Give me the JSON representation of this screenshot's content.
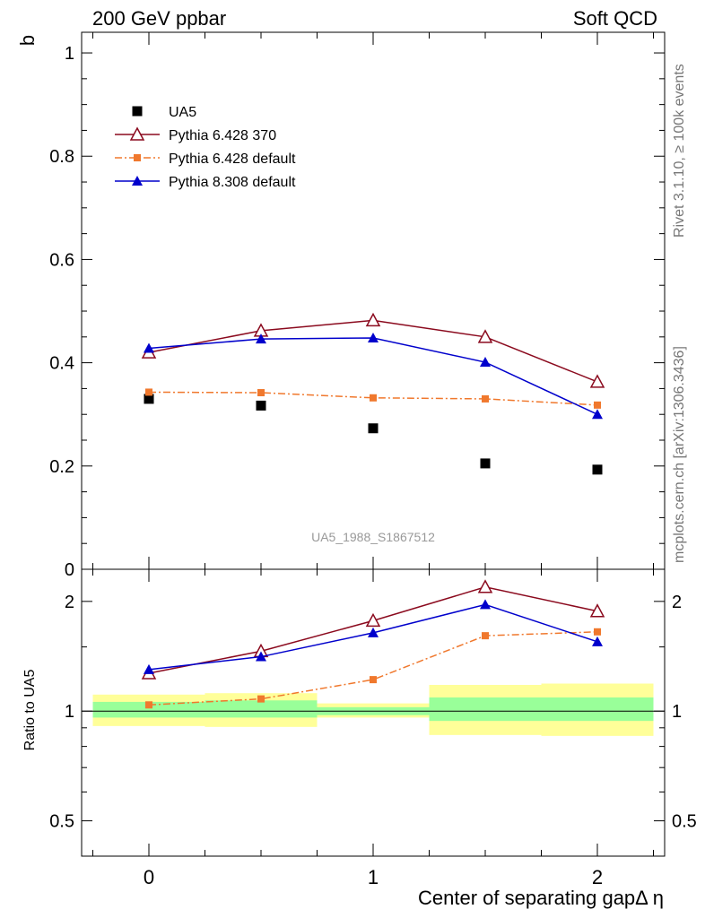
{
  "header": {
    "left": "200 GeV ppbar",
    "right": "Soft QCD"
  },
  "side": {
    "rivet": "Rivet 3.1.10, ≥ 100k events",
    "mcplots": "mcplots.cern.ch [arXiv:1306.3436]"
  },
  "colors": {
    "ua5": "#000000",
    "py6_370": "#8b0a1e",
    "py6_default": "#f0782d",
    "py8_default": "#0000cc",
    "band_inner": "#99ff99",
    "band_outer": "#ffff99"
  },
  "chart_data": [
    {
      "type": "scatter",
      "panel": "main",
      "ylabel": "b",
      "xlim": [
        -0.3,
        2.3
      ],
      "ylim": [
        0,
        1.04
      ],
      "y_ticks": [
        "0",
        "0.2",
        "0.4",
        "0.6",
        "0.8",
        "1"
      ],
      "grid": false,
      "legend_position": "top-left",
      "watermark": "UA5_1988_S1867512",
      "x": [
        0,
        0.5,
        1,
        1.5,
        2
      ],
      "series": [
        {
          "name": "UA5",
          "marker": "square",
          "values": [
            0.33,
            0.317,
            0.273,
            0.205,
            0.193
          ]
        },
        {
          "name": "Pythia 6.428 370",
          "marker": "open-triangle",
          "line": "solid",
          "values": [
            0.42,
            0.462,
            0.482,
            0.45,
            0.363
          ]
        },
        {
          "name": "Pythia 6.428 default",
          "marker": "small-square",
          "line": "dash-dot",
          "values": [
            0.343,
            0.342,
            0.332,
            0.33,
            0.318
          ]
        },
        {
          "name": "Pythia 8.308 default",
          "marker": "filled-triangle",
          "line": "solid",
          "values": [
            0.428,
            0.446,
            0.448,
            0.401,
            0.3
          ]
        }
      ]
    },
    {
      "type": "line",
      "panel": "ratio",
      "ylabel": "Ratio to UA5",
      "xlabel": "Center of separating gapΔ η",
      "xlim": [
        -0.3,
        2.3
      ],
      "x_ticks": [
        "0",
        "1",
        "2"
      ],
      "y_ticks": [
        "0.5",
        "1",
        "2"
      ],
      "log_y": true,
      "ylim": [
        0.4,
        2.45
      ],
      "x": [
        0,
        0.5,
        1,
        1.5,
        2
      ],
      "bins": [
        [
          -0.25,
          0.25
        ],
        [
          0.25,
          0.75
        ],
        [
          0.75,
          1.25
        ],
        [
          1.25,
          1.75
        ],
        [
          1.75,
          2.25
        ]
      ],
      "band_inner": [
        [
          0.96,
          1.06
        ],
        [
          0.96,
          1.07
        ],
        [
          0.975,
          1.025
        ],
        [
          0.94,
          1.09
        ],
        [
          0.94,
          1.09
        ]
      ],
      "band_outer": [
        [
          0.91,
          1.11
        ],
        [
          0.905,
          1.12
        ],
        [
          0.96,
          1.05
        ],
        [
          0.86,
          1.18
        ],
        [
          0.855,
          1.19
        ]
      ],
      "series": [
        {
          "name": "Pythia 6.428 370",
          "values": [
            1.27,
            1.46,
            1.77,
            2.19,
            1.88
          ]
        },
        {
          "name": "Pythia 6.428 default",
          "values": [
            1.04,
            1.08,
            1.22,
            1.61,
            1.65
          ]
        },
        {
          "name": "Pythia 8.308 default",
          "values": [
            1.3,
            1.41,
            1.64,
            1.96,
            1.55
          ]
        }
      ]
    }
  ]
}
